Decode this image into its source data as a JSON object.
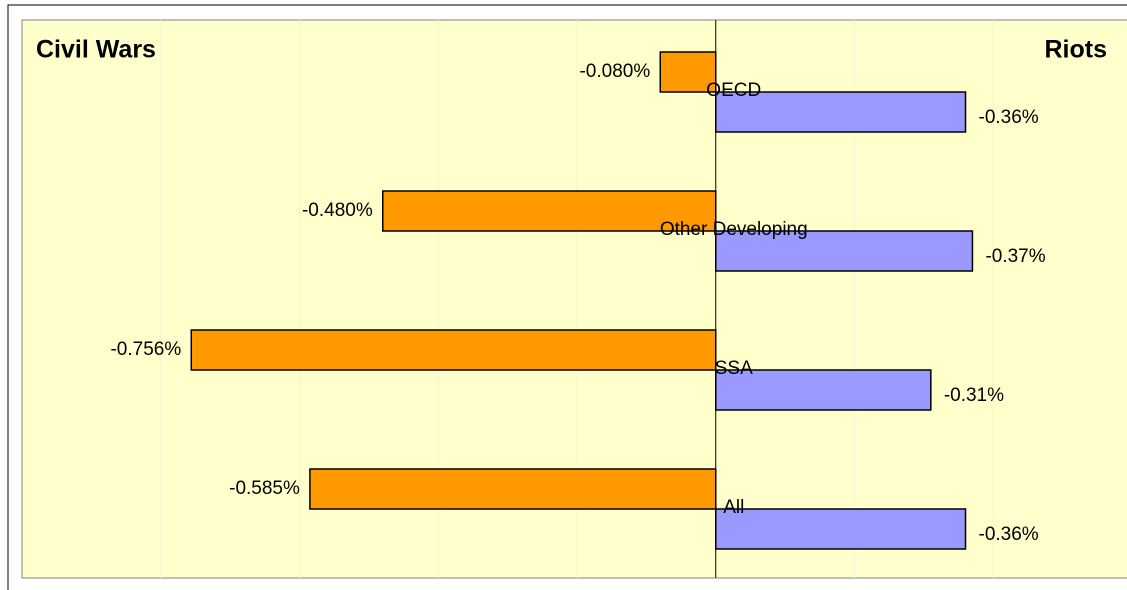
{
  "chart_data": {
    "type": "butterfly",
    "categories": [
      "OECD",
      "Other Developing",
      "SSA",
      "All"
    ],
    "series": [
      {
        "name": "Civil Wars",
        "color": "#ff9900",
        "side": "left",
        "values": [
          -0.08,
          -0.48,
          -0.756,
          -0.585
        ],
        "value_labels": [
          "-0.080%",
          "-0.480%",
          "-0.756%",
          "-0.585%"
        ]
      },
      {
        "name": "Riots",
        "color": "#9999ff",
        "side": "right",
        "values": [
          -0.36,
          -0.37,
          -0.31,
          -0.36
        ],
        "value_labels": [
          "-0.36%",
          "-0.37%",
          "-0.31%",
          "-0.36%"
        ]
      }
    ],
    "xlim": [
      -1.0,
      0.6
    ],
    "xticks": [
      -0.8,
      -0.6,
      -0.4,
      -0.2,
      0,
      0.2,
      0.4
    ],
    "grid": true
  }
}
